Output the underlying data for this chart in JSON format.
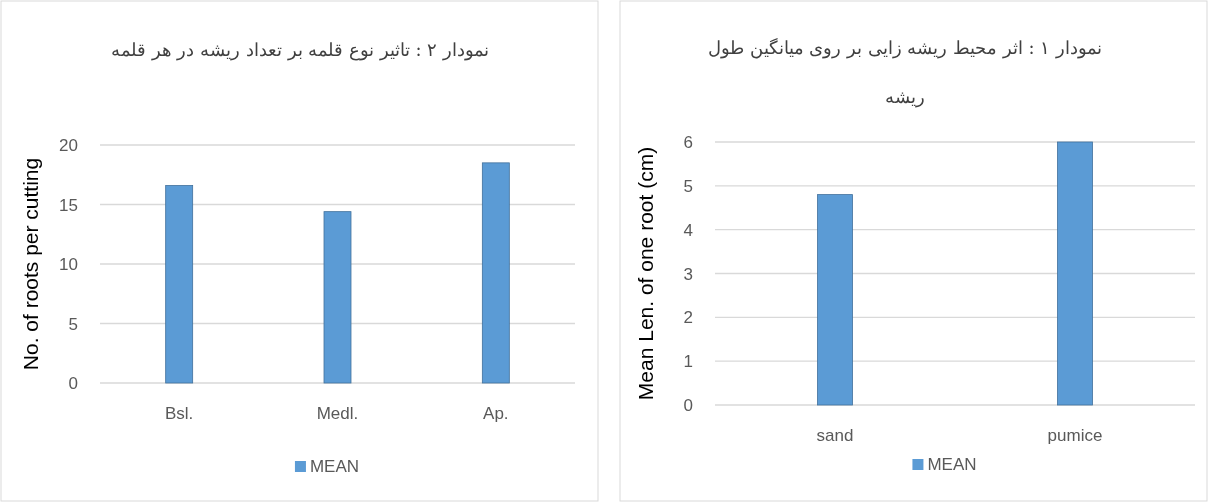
{
  "chart_data": [
    {
      "type": "bar",
      "title": "نمودار ۲ : تاثیر نوع قلمه بر تعداد ریشه در هر قلمه",
      "ylabel": "No. of roots per cutting",
      "categories": [
        "Bsl.",
        "Medl.",
        "Ap."
      ],
      "series": [
        {
          "name": "MEAN",
          "color": "#5b9bd5",
          "values": [
            16.6,
            14.4,
            18.5
          ]
        }
      ],
      "ylim": [
        0,
        20
      ],
      "yticks": [
        0,
        5,
        10,
        15,
        20
      ],
      "grid": "y",
      "legend": "bottom"
    },
    {
      "type": "bar",
      "title": "نمودار ۱ : اثر محیط ریشه زایی بر روی میانگین طول ریشه",
      "ylabel": "Mean Len. of one root (cm)",
      "categories": [
        "sand",
        "pumice"
      ],
      "series": [
        {
          "name": "MEAN",
          "color": "#5b9bd5",
          "values": [
            4.8,
            6.0
          ]
        }
      ],
      "ylim": [
        0,
        6
      ],
      "yticks": [
        0,
        1,
        2,
        3,
        4,
        5,
        6
      ],
      "grid": "y",
      "legend": "bottom"
    }
  ]
}
